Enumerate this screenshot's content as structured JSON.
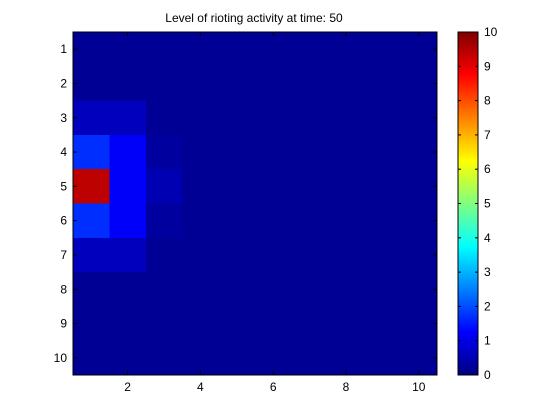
{
  "chart_data": {
    "type": "heatmap",
    "title": "Level of rioting activity at time: 50",
    "xlabel": "",
    "ylabel": "",
    "rows": 10,
    "cols": 10,
    "x_ticks": [
      2,
      4,
      6,
      8,
      10
    ],
    "x_tick_labels": [
      "2",
      "4",
      "6",
      "8",
      "10"
    ],
    "y_ticks": [
      1,
      2,
      3,
      4,
      5,
      6,
      7,
      8,
      9,
      10
    ],
    "y_tick_labels": [
      "1",
      "2",
      "3",
      "4",
      "5",
      "6",
      "7",
      "8",
      "9",
      "10"
    ],
    "xlim": [
      0.5,
      10.5
    ],
    "ylim": [
      0.5,
      10.5
    ],
    "y_axis_reversed": true,
    "colormap": "jet",
    "clim": [
      0,
      10
    ],
    "values": [
      [
        0.2,
        0.2,
        0.2,
        0.2,
        0.2,
        0.2,
        0.2,
        0.2,
        0.2,
        0.2
      ],
      [
        0.2,
        0.2,
        0.2,
        0.2,
        0.2,
        0.2,
        0.2,
        0.2,
        0.2,
        0.2
      ],
      [
        0.6,
        0.6,
        0.2,
        0.2,
        0.2,
        0.2,
        0.2,
        0.2,
        0.2,
        0.2
      ],
      [
        1.7,
        1.2,
        0.3,
        0.2,
        0.2,
        0.2,
        0.2,
        0.2,
        0.2,
        0.2
      ],
      [
        9.4,
        1.2,
        0.5,
        0.2,
        0.2,
        0.2,
        0.2,
        0.2,
        0.2,
        0.2
      ],
      [
        1.7,
        1.2,
        0.3,
        0.2,
        0.2,
        0.2,
        0.2,
        0.2,
        0.2,
        0.2
      ],
      [
        0.6,
        0.6,
        0.2,
        0.2,
        0.2,
        0.2,
        0.2,
        0.2,
        0.2,
        0.2
      ],
      [
        0.2,
        0.2,
        0.2,
        0.2,
        0.2,
        0.2,
        0.2,
        0.2,
        0.2,
        0.2
      ],
      [
        0.2,
        0.2,
        0.2,
        0.2,
        0.2,
        0.2,
        0.2,
        0.2,
        0.2,
        0.2
      ],
      [
        0.2,
        0.2,
        0.2,
        0.2,
        0.2,
        0.2,
        0.2,
        0.2,
        0.2,
        0.2
      ]
    ],
    "colorbar": {
      "ticks": [
        0,
        1,
        2,
        3,
        4,
        5,
        6,
        7,
        8,
        9,
        10
      ],
      "tick_labels": [
        "0",
        "1",
        "2",
        "3",
        "4",
        "5",
        "6",
        "7",
        "8",
        "9",
        "10"
      ]
    },
    "grid": false,
    "legend": "none"
  }
}
